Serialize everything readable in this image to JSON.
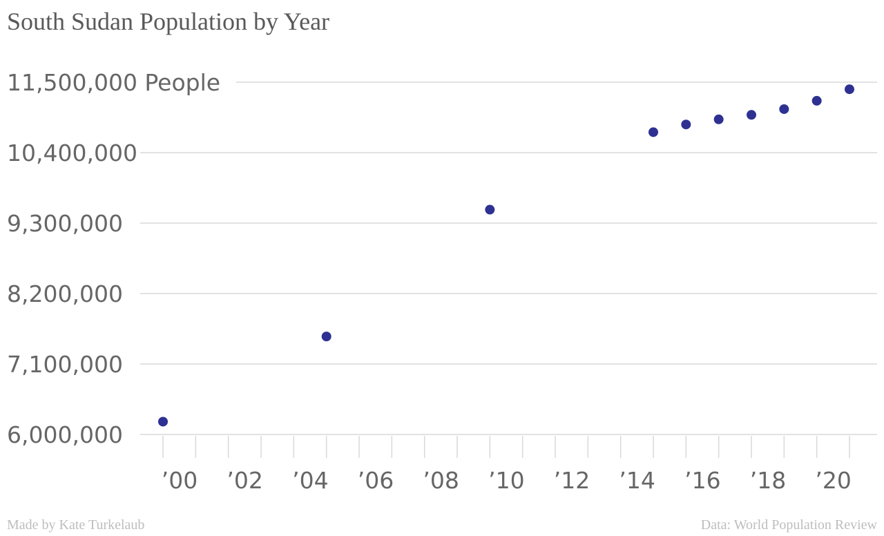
{
  "title": "South Sudan Population by Year",
  "footer": {
    "credit": "Made by Kate Turkelaub",
    "source": "Data: World Population Review"
  },
  "colors": {
    "point": "#2e3192",
    "grid": "#d9d9d9",
    "tick_text": "#666666",
    "axis_tick": "#d9d9d9"
  },
  "chart_data": {
    "type": "scatter",
    "title": "South Sudan Population by Year",
    "xlabel": "",
    "ylabel": "",
    "xlim": [
      2000,
      2021
    ],
    "ylim": [
      6000000,
      11500000
    ],
    "y_ticks": [
      6000000,
      7100000,
      8200000,
      9300000,
      10400000,
      11500000
    ],
    "y_tick_labels": [
      "6,000,000",
      "7,100,000",
      "8,200,000",
      "9,300,000",
      "10,400,000",
      "11,500,000 People"
    ],
    "x_ticks": [
      2000,
      2002,
      2004,
      2006,
      2008,
      2010,
      2012,
      2014,
      2016,
      2018,
      2020
    ],
    "x_tick_labels": [
      "’00",
      "’02",
      "’04",
      "’06",
      "’08",
      "’10",
      "’12",
      "’14",
      "’16",
      "’18",
      "’20"
    ],
    "x_minor_ticks": [
      2001,
      2003,
      2005,
      2007,
      2009,
      2011,
      2013,
      2015,
      2017,
      2019,
      2021
    ],
    "grid": true,
    "legend": "none",
    "series": [
      {
        "x": [
          2000,
          2005,
          2010,
          2015,
          2016,
          2017,
          2018,
          2019,
          2020,
          2021
        ],
        "y": [
          6200000,
          7530000,
          9510000,
          10720000,
          10840000,
          10920000,
          10990000,
          11080000,
          11210000,
          11390000
        ]
      }
    ]
  }
}
